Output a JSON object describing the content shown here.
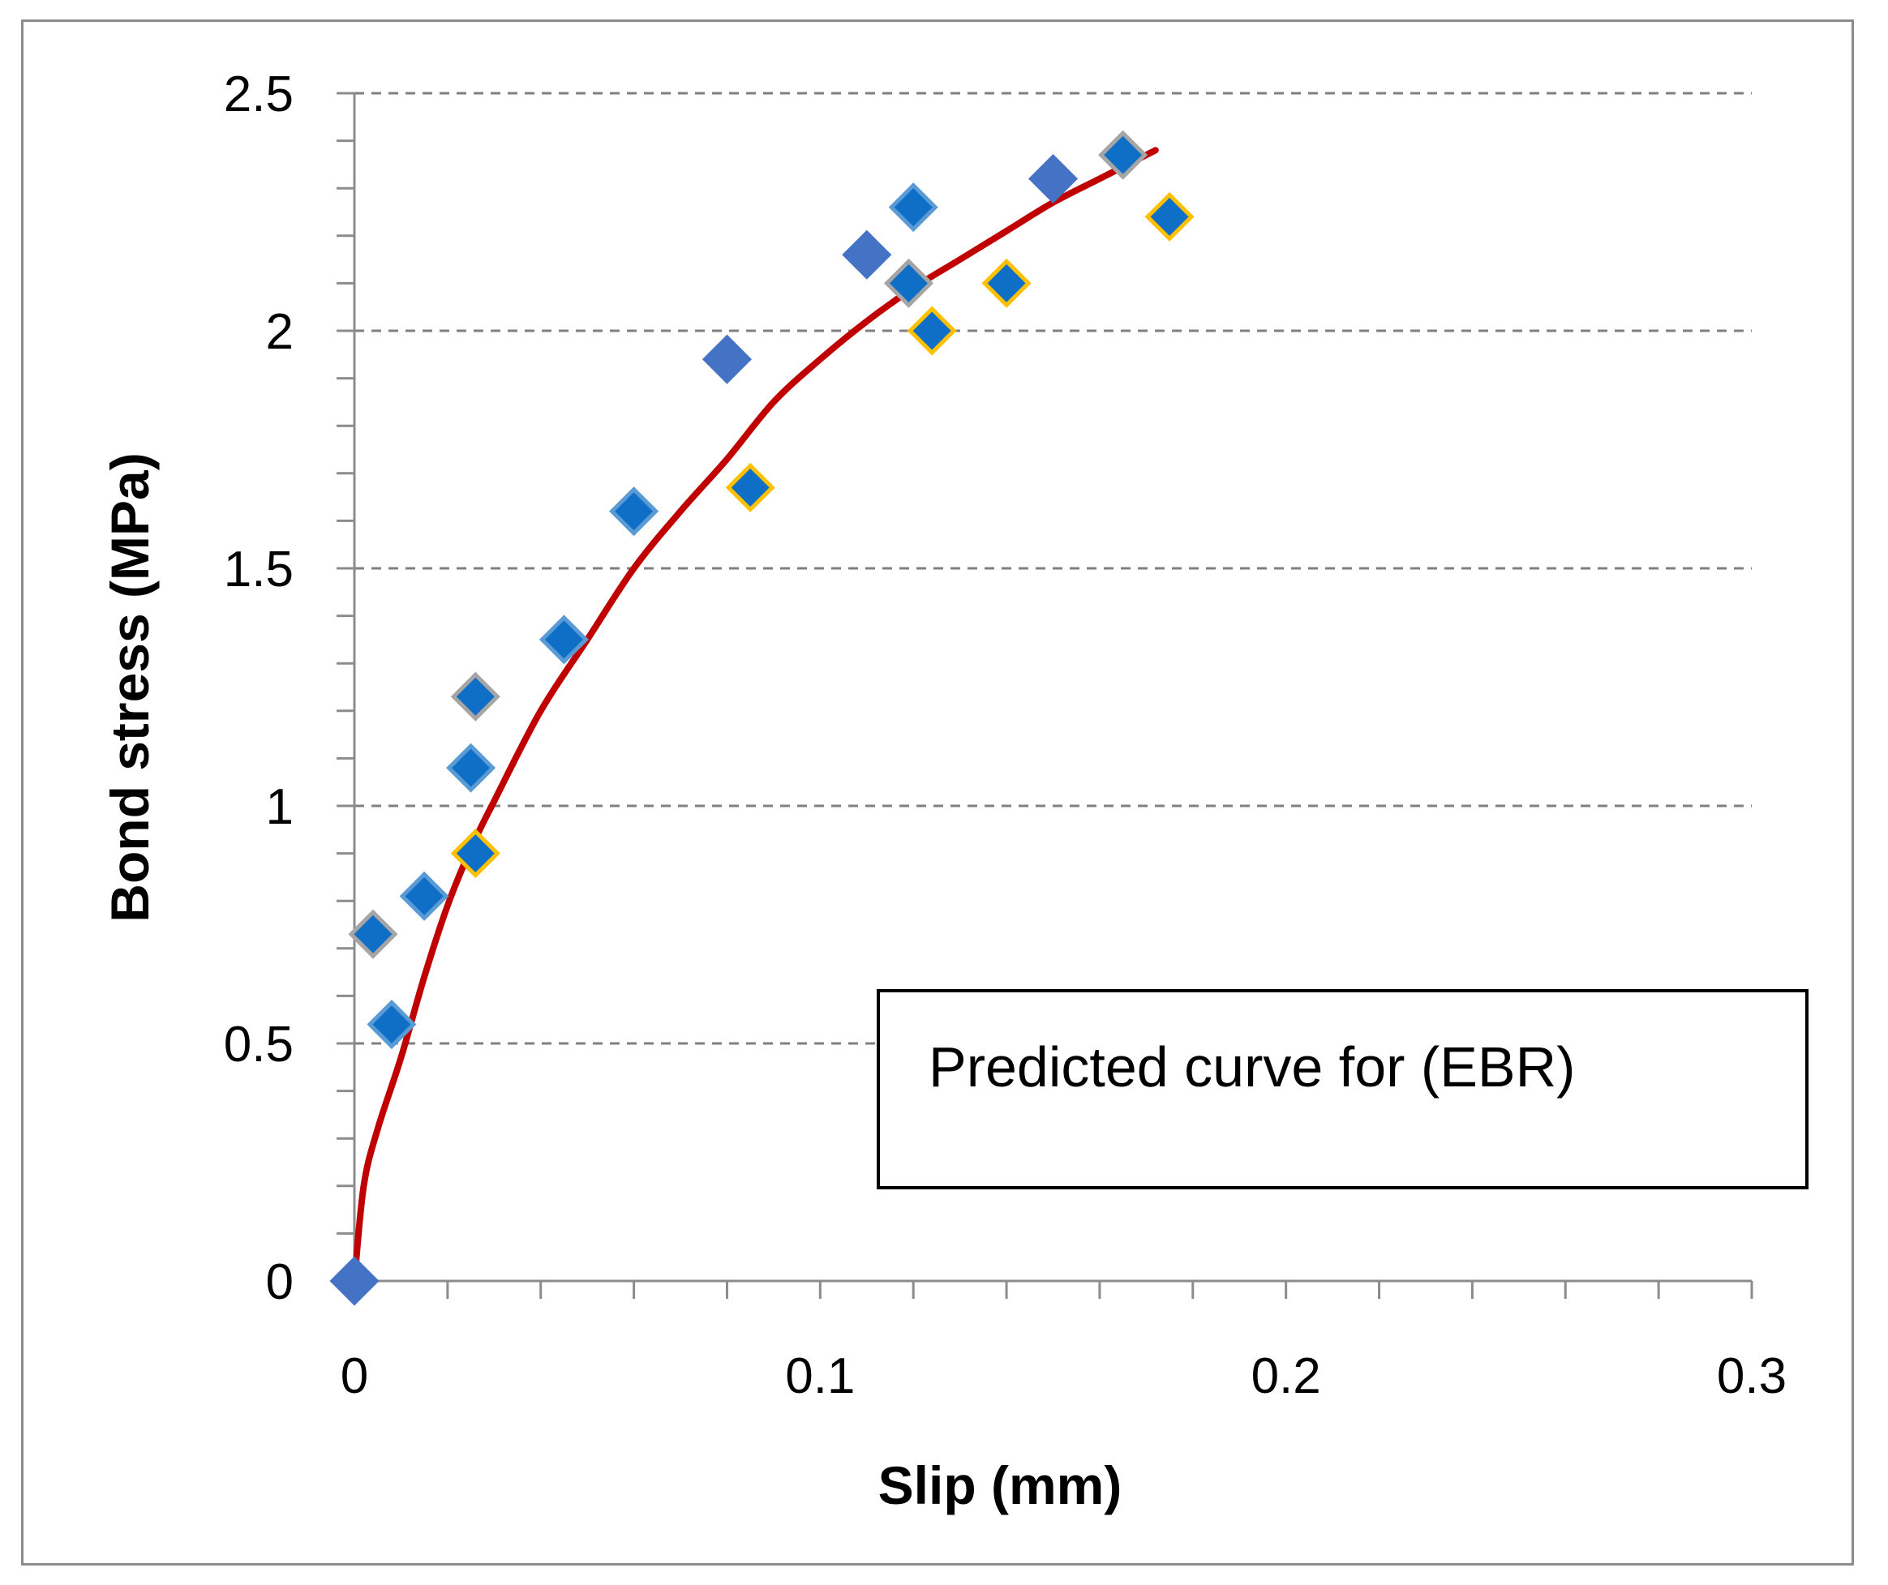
{
  "chart_data": {
    "type": "scatter",
    "title": "",
    "xlabel": "Slip (mm)",
    "ylabel": "Bond stress (MPa)",
    "xlim": [
      0,
      0.3
    ],
    "ylim": [
      0,
      2.5
    ],
    "x_ticks": [
      0,
      0.1,
      0.2,
      0.3
    ],
    "x_tick_labels": [
      "0",
      "0.1",
      "0.2",
      "0.3"
    ],
    "y_ticks": [
      0,
      0.5,
      1,
      1.5,
      2,
      2.5
    ],
    "y_tick_labels": [
      "0",
      "0.5",
      "1",
      "1.5",
      "2",
      "2.5"
    ],
    "grid": "horizontal dashed",
    "annotation": "Predicted curve for (EBR)",
    "colors": {
      "marker_fill": "#0f6fc6",
      "marker_fill_alt": "#4472c4",
      "curve": "#c00000",
      "gridline": "#808080"
    },
    "series": [
      {
        "marker": "diamond",
        "outline": "#4472c4",
        "points": [
          [
            0,
            0
          ],
          [
            0.08,
            1.94
          ],
          [
            0.11,
            2.16
          ],
          [
            0.15,
            2.32
          ]
        ]
      },
      {
        "marker": "diamond",
        "outline": "#5b9bd5",
        "points": [
          [
            0.008,
            0.54
          ],
          [
            0.015,
            0.81
          ],
          [
            0.025,
            1.08
          ],
          [
            0.045,
            1.35
          ],
          [
            0.06,
            1.62
          ],
          [
            0.12,
            2.26
          ]
        ]
      },
      {
        "marker": "diamond",
        "outline": "#a5a5a5",
        "points": [
          [
            0.004,
            0.73
          ],
          [
            0.026,
            1.23
          ],
          [
            0.119,
            2.1
          ],
          [
            0.165,
            2.37
          ]
        ]
      },
      {
        "marker": "diamond",
        "outline": "#ffc000",
        "points": [
          [
            0.026,
            0.9
          ],
          [
            0.085,
            1.67
          ],
          [
            0.124,
            2.0
          ],
          [
            0.14,
            2.1
          ],
          [
            0.175,
            2.24
          ]
        ]
      },
      {
        "type": "line",
        "style": "smooth curve",
        "color": "#c00000",
        "points": [
          [
            0,
            0
          ],
          [
            0.002,
            0.2
          ],
          [
            0.005,
            0.32
          ],
          [
            0.01,
            0.47
          ],
          [
            0.015,
            0.64
          ],
          [
            0.02,
            0.79
          ],
          [
            0.025,
            0.91
          ],
          [
            0.03,
            1.01
          ],
          [
            0.04,
            1.2
          ],
          [
            0.05,
            1.35
          ],
          [
            0.06,
            1.5
          ],
          [
            0.07,
            1.62
          ],
          [
            0.08,
            1.73
          ],
          [
            0.09,
            1.85
          ],
          [
            0.1,
            1.94
          ],
          [
            0.11,
            2.02
          ],
          [
            0.12,
            2.09
          ],
          [
            0.13,
            2.15
          ],
          [
            0.14,
            2.21
          ],
          [
            0.15,
            2.27
          ],
          [
            0.16,
            2.32
          ],
          [
            0.172,
            2.38
          ]
        ]
      }
    ]
  }
}
